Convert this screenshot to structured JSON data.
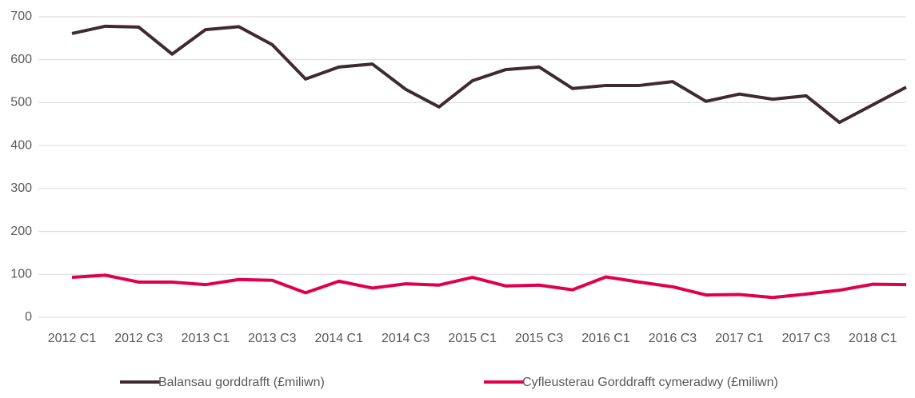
{
  "chart_data": {
    "type": "line",
    "categories": [
      "2012 C1",
      null,
      "2012 C3",
      null,
      "2013 C1",
      null,
      "2013 C3",
      null,
      "2014 C1",
      null,
      "2014 C3",
      null,
      "2015 C1",
      null,
      "2015 C3",
      null,
      "2016 C1",
      null,
      "2016 C3",
      null,
      "2017 C1",
      null,
      "2017 C3",
      null,
      "2018 C1",
      null
    ],
    "series": [
      {
        "name": "Balansau gorddrafft (£miliwn)",
        "color": "#3f2a33",
        "values": [
          661,
          678,
          676,
          613,
          670,
          677,
          635,
          555,
          583,
          590,
          531,
          490,
          551,
          577,
          583,
          533,
          540,
          540,
          549,
          503,
          520,
          508,
          516,
          454,
          495,
          536
        ]
      },
      {
        "name": "Cyfleusterau Gorddrafft cymeradwy (£miliwn)",
        "color": "#e0004d",
        "values": [
          93,
          98,
          82,
          82,
          76,
          88,
          86,
          57,
          84,
          68,
          78,
          75,
          93,
          73,
          75,
          64,
          94,
          82,
          71,
          52,
          53,
          46,
          54,
          63,
          77,
          76
        ]
      }
    ],
    "ylim": [
      0,
      700
    ],
    "yticks": [
      0,
      100,
      200,
      300,
      400,
      500,
      600,
      700
    ],
    "grid": true,
    "legend": "bottom"
  }
}
